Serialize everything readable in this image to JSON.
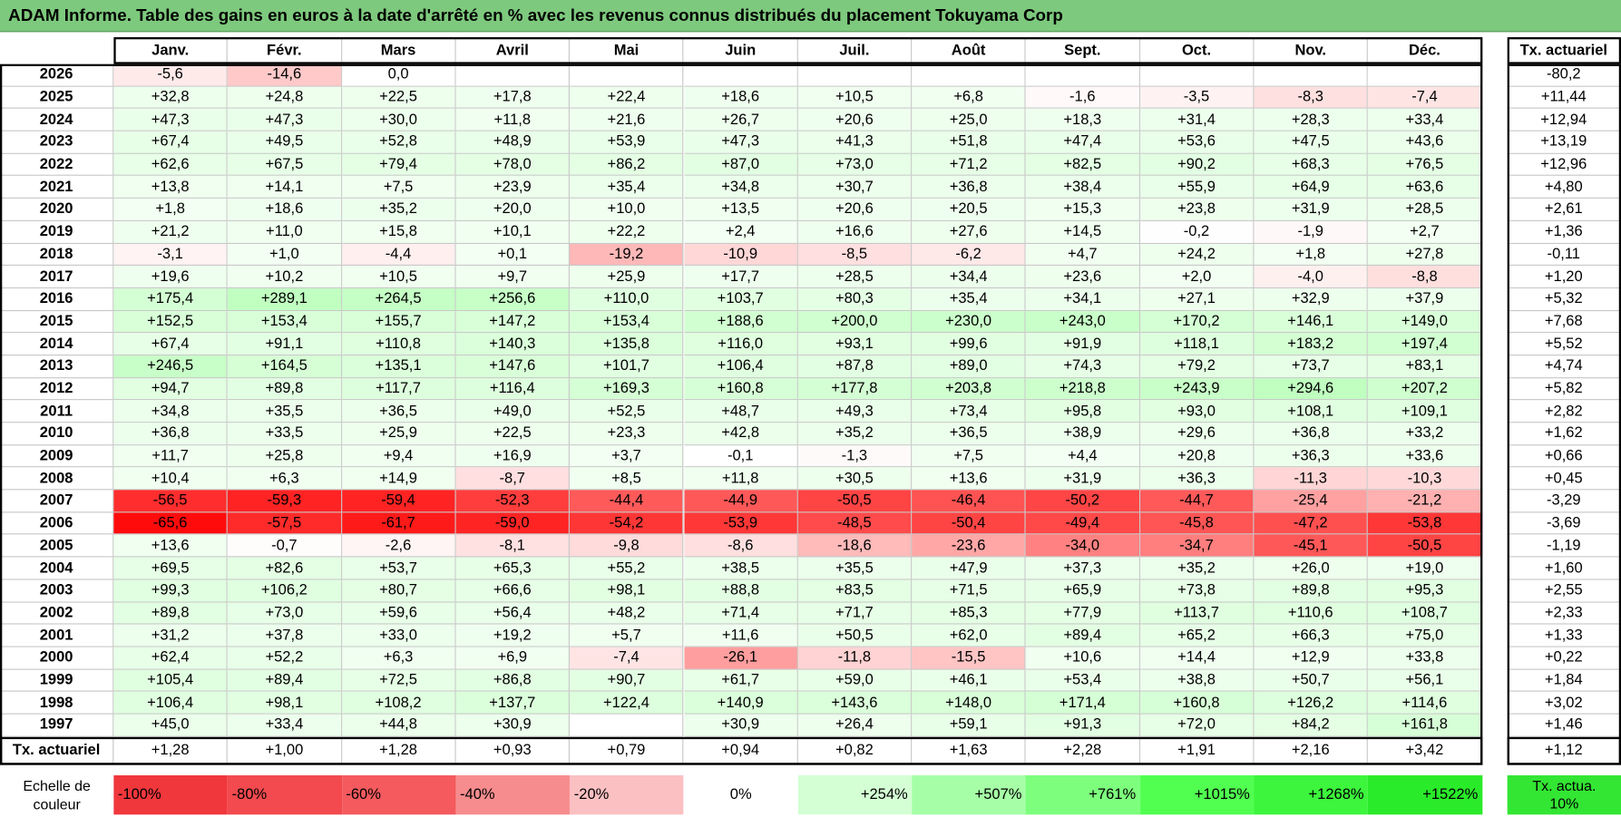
{
  "title": "ADAM Informe. Table des gains en euros à la date d'arrêté en % avec les revenus connus distribués du placement Tokuyama Corp",
  "header": {
    "months": [
      "Janv.",
      "Févr.",
      "Mars",
      "Avril",
      "Mai",
      "Juin",
      "Juil.",
      "Août",
      "Sept.",
      "Oct.",
      "Nov.",
      "Déc."
    ],
    "total": "Tx. actuariel"
  },
  "rows": [
    {
      "year": "2026",
      "values": [
        "-5,6",
        "-14,6",
        "0,0",
        null,
        null,
        null,
        null,
        null,
        null,
        null,
        null,
        null
      ],
      "total": "-80,2"
    },
    {
      "year": "2025",
      "values": [
        "+32,8",
        "+24,8",
        "+22,5",
        "+17,8",
        "+22,4",
        "+18,6",
        "+10,5",
        "+6,8",
        "-1,6",
        "-3,5",
        "-8,3",
        "-7,4"
      ],
      "total": "+11,44"
    },
    {
      "year": "2024",
      "values": [
        "+47,3",
        "+47,3",
        "+30,0",
        "+11,8",
        "+21,6",
        "+26,7",
        "+20,6",
        "+25,0",
        "+18,3",
        "+31,4",
        "+28,3",
        "+33,4"
      ],
      "total": "+12,94"
    },
    {
      "year": "2023",
      "values": [
        "+67,4",
        "+49,5",
        "+52,8",
        "+48,9",
        "+53,9",
        "+47,3",
        "+41,3",
        "+51,8",
        "+47,4",
        "+53,6",
        "+47,5",
        "+43,6"
      ],
      "total": "+13,19"
    },
    {
      "year": "2022",
      "values": [
        "+62,6",
        "+67,5",
        "+79,4",
        "+78,0",
        "+86,2",
        "+87,0",
        "+73,0",
        "+71,2",
        "+82,5",
        "+90,2",
        "+68,3",
        "+76,5"
      ],
      "total": "+12,96"
    },
    {
      "year": "2021",
      "values": [
        "+13,8",
        "+14,1",
        "+7,5",
        "+23,9",
        "+35,4",
        "+34,8",
        "+30,7",
        "+36,8",
        "+38,4",
        "+55,9",
        "+64,9",
        "+63,6"
      ],
      "total": "+4,80"
    },
    {
      "year": "2020",
      "values": [
        "+1,8",
        "+18,6",
        "+35,2",
        "+20,0",
        "+10,0",
        "+13,5",
        "+20,6",
        "+20,5",
        "+15,3",
        "+23,8",
        "+31,9",
        "+28,5"
      ],
      "total": "+2,61"
    },
    {
      "year": "2019",
      "values": [
        "+21,2",
        "+11,0",
        "+15,8",
        "+10,1",
        "+22,2",
        "+2,4",
        "+16,6",
        "+27,6",
        "+14,5",
        "-0,2",
        "-1,9",
        "+2,7"
      ],
      "total": "+1,36"
    },
    {
      "year": "2018",
      "values": [
        "-3,1",
        "+1,0",
        "-4,4",
        "+0,1",
        "-19,2",
        "-10,9",
        "-8,5",
        "-6,2",
        "+4,7",
        "+24,2",
        "+1,8",
        "+27,8"
      ],
      "total": "-0,11"
    },
    {
      "year": "2017",
      "values": [
        "+19,6",
        "+10,2",
        "+10,5",
        "+9,7",
        "+25,9",
        "+17,7",
        "+28,5",
        "+34,4",
        "+23,6",
        "+2,0",
        "-4,0",
        "-8,8"
      ],
      "total": "+1,20"
    },
    {
      "year": "2016",
      "values": [
        "+175,4",
        "+289,1",
        "+264,5",
        "+256,6",
        "+110,0",
        "+103,7",
        "+80,3",
        "+35,4",
        "+34,1",
        "+27,1",
        "+32,9",
        "+37,9"
      ],
      "total": "+5,32"
    },
    {
      "year": "2015",
      "values": [
        "+152,5",
        "+153,4",
        "+155,7",
        "+147,2",
        "+153,4",
        "+188,6",
        "+200,0",
        "+230,0",
        "+243,0",
        "+170,2",
        "+146,1",
        "+149,0"
      ],
      "total": "+7,68"
    },
    {
      "year": "2014",
      "values": [
        "+67,4",
        "+91,1",
        "+110,8",
        "+140,3",
        "+135,8",
        "+116,0",
        "+93,1",
        "+99,6",
        "+91,9",
        "+118,1",
        "+183,2",
        "+197,4"
      ],
      "total": "+5,52"
    },
    {
      "year": "2013",
      "values": [
        "+246,5",
        "+164,5",
        "+135,1",
        "+147,6",
        "+101,7",
        "+106,4",
        "+87,8",
        "+89,0",
        "+74,3",
        "+79,2",
        "+73,7",
        "+83,1"
      ],
      "total": "+4,74"
    },
    {
      "year": "2012",
      "values": [
        "+94,7",
        "+89,8",
        "+117,7",
        "+116,4",
        "+169,3",
        "+160,8",
        "+177,8",
        "+203,8",
        "+218,8",
        "+243,9",
        "+294,6",
        "+207,2"
      ],
      "total": "+5,82"
    },
    {
      "year": "2011",
      "values": [
        "+34,8",
        "+35,5",
        "+36,5",
        "+49,0",
        "+52,5",
        "+48,7",
        "+49,3",
        "+73,4",
        "+95,8",
        "+93,0",
        "+108,1",
        "+109,1"
      ],
      "total": "+2,82"
    },
    {
      "year": "2010",
      "values": [
        "+36,8",
        "+33,5",
        "+25,9",
        "+22,5",
        "+23,3",
        "+42,8",
        "+35,2",
        "+36,5",
        "+38,9",
        "+29,6",
        "+36,8",
        "+33,2"
      ],
      "total": "+1,62"
    },
    {
      "year": "2009",
      "values": [
        "+11,7",
        "+25,8",
        "+9,4",
        "+16,9",
        "+3,7",
        "-0,1",
        "-1,3",
        "+7,5",
        "+4,4",
        "+20,8",
        "+36,3",
        "+33,6"
      ],
      "total": "+0,66"
    },
    {
      "year": "2008",
      "values": [
        "+10,4",
        "+6,3",
        "+14,9",
        "-8,7",
        "+8,5",
        "+11,8",
        "+30,5",
        "+13,6",
        "+31,9",
        "+36,3",
        "-11,3",
        "-10,3"
      ],
      "total": "+0,45"
    },
    {
      "year": "2007",
      "values": [
        "-56,5",
        "-59,3",
        "-59,4",
        "-52,3",
        "-44,4",
        "-44,9",
        "-50,5",
        "-46,4",
        "-50,2",
        "-44,7",
        "-25,4",
        "-21,2"
      ],
      "total": "-3,29"
    },
    {
      "year": "2006",
      "values": [
        "-65,6",
        "-57,5",
        "-61,7",
        "-59,0",
        "-54,2",
        "-53,9",
        "-48,5",
        "-50,4",
        "-49,4",
        "-45,8",
        "-47,2",
        "-53,8"
      ],
      "total": "-3,69"
    },
    {
      "year": "2005",
      "values": [
        "+13,6",
        "-0,7",
        "-2,6",
        "-8,1",
        "-9,8",
        "-8,6",
        "-18,6",
        "-23,6",
        "-34,0",
        "-34,7",
        "-45,1",
        "-50,5"
      ],
      "total": "-1,19"
    },
    {
      "year": "2004",
      "values": [
        "+69,5",
        "+82,6",
        "+53,7",
        "+65,3",
        "+55,2",
        "+38,5",
        "+35,5",
        "+47,9",
        "+37,3",
        "+35,2",
        "+26,0",
        "+19,0"
      ],
      "total": "+1,60"
    },
    {
      "year": "2003",
      "values": [
        "+99,3",
        "+106,2",
        "+80,7",
        "+66,6",
        "+98,1",
        "+88,8",
        "+83,5",
        "+71,5",
        "+65,9",
        "+73,8",
        "+89,8",
        "+95,3"
      ],
      "total": "+2,55"
    },
    {
      "year": "2002",
      "values": [
        "+89,8",
        "+73,0",
        "+59,6",
        "+56,4",
        "+48,2",
        "+71,4",
        "+71,7",
        "+85,3",
        "+77,9",
        "+113,7",
        "+110,6",
        "+108,7"
      ],
      "total": "+2,33"
    },
    {
      "year": "2001",
      "values": [
        "+31,2",
        "+37,8",
        "+33,0",
        "+19,2",
        "+5,7",
        "+11,6",
        "+50,5",
        "+62,0",
        "+89,4",
        "+65,2",
        "+66,3",
        "+75,0"
      ],
      "total": "+1,33"
    },
    {
      "year": "2000",
      "values": [
        "+62,4",
        "+52,2",
        "+6,3",
        "+6,9",
        "-7,4",
        "-26,1",
        "-11,8",
        "-15,5",
        "+10,6",
        "+14,4",
        "+12,9",
        "+33,8"
      ],
      "total": "+0,22"
    },
    {
      "year": "1999",
      "values": [
        "+105,4",
        "+89,4",
        "+72,5",
        "+86,8",
        "+90,7",
        "+61,7",
        "+59,0",
        "+46,1",
        "+53,4",
        "+38,8",
        "+50,7",
        "+56,1"
      ],
      "total": "+1,84"
    },
    {
      "year": "1998",
      "values": [
        "+106,4",
        "+98,1",
        "+108,2",
        "+137,7",
        "+122,4",
        "+140,9",
        "+143,6",
        "+148,0",
        "+171,4",
        "+160,8",
        "+126,2",
        "+114,6"
      ],
      "total": "+3,02"
    },
    {
      "year": "1997",
      "values": [
        "+45,0",
        "+33,4",
        "+44,8",
        "+30,9",
        null,
        "+30,9",
        "+26,4",
        "+59,1",
        "+91,3",
        "+72,0",
        "+84,2",
        "+161,8"
      ],
      "total": "+1,46"
    }
  ],
  "footer": {
    "label": "Tx. actuariel",
    "values": [
      "+1,28",
      "+1,00",
      "+1,28",
      "+0,93",
      "+0,79",
      "+0,94",
      "+0,82",
      "+1,63",
      "+2,28",
      "+1,91",
      "+2,16",
      "+3,42"
    ],
    "total": "+1,12"
  },
  "scale": {
    "label": "Echelle de couleur",
    "steps": [
      "-100%",
      "-80%",
      "-60%",
      "-40%",
      "-20%",
      "0%",
      "+254%",
      "+507%",
      "+761%",
      "+1015%",
      "+1268%",
      "+1522%"
    ],
    "total": "Tx. actua. 10%"
  }
}
